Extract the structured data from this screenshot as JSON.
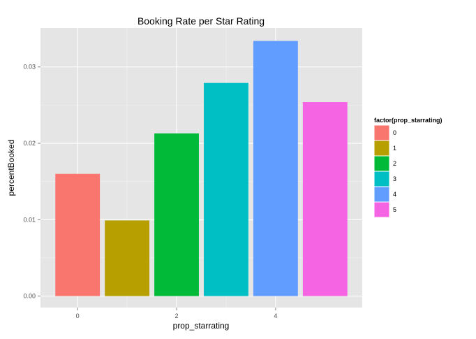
{
  "chart_data": {
    "type": "bar",
    "title": "Booking Rate per Star Rating",
    "xlabel": "prop_starrating",
    "ylabel": "percentBooked",
    "categories": [
      "0",
      "1",
      "2",
      "3",
      "4",
      "5"
    ],
    "x": [
      0,
      1,
      2,
      3,
      4,
      5
    ],
    "values": [
      0.016,
      0.0099,
      0.0213,
      0.0279,
      0.0334,
      0.0254
    ],
    "colors": [
      "#F8766D",
      "#B79F00",
      "#00BA38",
      "#00BFC4",
      "#619CFF",
      "#F564E3"
    ],
    "xlim": [
      -0.75,
      5.75
    ],
    "ylim": [
      -0.0015,
      0.0351
    ],
    "xticks": [
      0,
      2,
      4
    ],
    "xtick_labels": [
      "0",
      "2",
      "4"
    ],
    "yticks": [
      0.0,
      0.01,
      0.02,
      0.03
    ],
    "ytick_labels": [
      "0.00",
      "0.01",
      "0.02",
      "0.03"
    ],
    "grid": true,
    "legend": {
      "title": "factor(prop_starrating)",
      "position": "right",
      "entries": [
        "0",
        "1",
        "2",
        "3",
        "4",
        "5"
      ]
    }
  }
}
